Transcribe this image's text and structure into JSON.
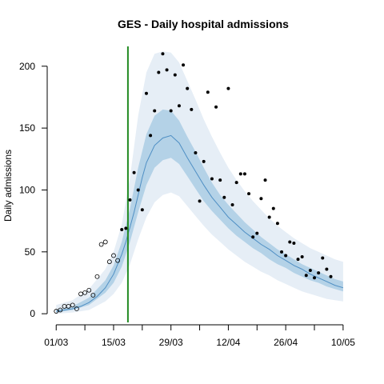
{
  "chart_data": {
    "type": "line",
    "title": "GES - Daily hospital admissions",
    "ylabel": "Daily admissions",
    "xlabel": "",
    "x_ticks": [
      {
        "day": 0,
        "label": "01/03"
      },
      {
        "day": 14,
        "label": "15/03"
      },
      {
        "day": 28,
        "label": "29/03"
      },
      {
        "day": 42,
        "label": "12/04"
      },
      {
        "day": 56,
        "label": "26/04"
      },
      {
        "day": 70,
        "label": "10/05"
      }
    ],
    "x_minor_ticks": [
      7,
      21,
      35,
      49,
      63
    ],
    "y_ticks": [
      0,
      50,
      100,
      150,
      200
    ],
    "xlim": [
      -2,
      71
    ],
    "ylim": [
      -7,
      216
    ],
    "vline": {
      "day": 17.5,
      "color": "#228b22"
    },
    "colors": {
      "outer_band": "#e6eef6",
      "inner_band": "#b4d2e7",
      "median_line": "#4f8fc4",
      "points": "#000000"
    },
    "series": [
      {
        "role": "median",
        "days": [
          0,
          2,
          4,
          6,
          8,
          10,
          12,
          14,
          16,
          17,
          18,
          19,
          20,
          21,
          22,
          24,
          26,
          28,
          30,
          32,
          34,
          36,
          38,
          40,
          42,
          44,
          46,
          48,
          50,
          52,
          54,
          56,
          58,
          60,
          62,
          64,
          66,
          68,
          70
        ],
        "values": [
          2,
          3,
          4,
          6,
          9,
          14,
          21,
          32,
          48,
          58,
          70,
          82,
          96,
          110,
          122,
          136,
          142,
          144,
          138,
          126,
          115,
          104,
          94,
          86,
          78,
          72,
          66,
          61,
          56,
          52,
          47,
          43,
          39,
          36,
          32,
          29,
          26,
          23,
          21
        ]
      },
      {
        "role": "inner-band-upper",
        "days": [
          0,
          4,
          8,
          12,
          14,
          16,
          18,
          20,
          22,
          24,
          26,
          28,
          30,
          32,
          34,
          36,
          38,
          40,
          42,
          44,
          46,
          48,
          50,
          52,
          54,
          56,
          58,
          60,
          62,
          64,
          66,
          68,
          70
        ],
        "values": [
          3,
          6,
          13,
          27,
          39,
          58,
          85,
          118,
          145,
          160,
          165,
          164,
          156,
          143,
          131,
          118,
          106,
          96,
          88,
          81,
          74,
          68,
          62,
          57,
          52,
          48,
          44,
          40,
          37,
          34,
          31,
          28,
          26
        ]
      },
      {
        "role": "inner-band-lower",
        "days": [
          0,
          4,
          8,
          12,
          14,
          16,
          18,
          20,
          22,
          24,
          26,
          28,
          30,
          32,
          34,
          36,
          38,
          40,
          42,
          44,
          46,
          48,
          50,
          52,
          54,
          56,
          58,
          60,
          62,
          64,
          66,
          68,
          70
        ],
        "values": [
          1,
          3,
          7,
          17,
          25,
          38,
          58,
          82,
          104,
          118,
          124,
          126,
          121,
          111,
          101,
          91,
          83,
          76,
          69,
          63,
          58,
          53,
          49,
          44,
          40,
          37,
          33,
          30,
          27,
          25,
          22,
          20,
          18
        ]
      },
      {
        "role": "outer-band-upper",
        "days": [
          0,
          4,
          8,
          12,
          14,
          16,
          18,
          20,
          22,
          24,
          26,
          28,
          30,
          32,
          34,
          36,
          38,
          40,
          42,
          44,
          46,
          48,
          50,
          52,
          54,
          56,
          58,
          60,
          62,
          64,
          66,
          68,
          70
        ],
        "values": [
          7,
          11,
          20,
          36,
          50,
          72,
          110,
          160,
          195,
          210,
          212,
          211,
          203,
          188,
          173,
          157,
          143,
          130,
          118,
          108,
          99,
          91,
          84,
          77,
          71,
          66,
          61,
          57,
          53,
          50,
          47,
          44,
          42
        ]
      },
      {
        "role": "outer-band-lower",
        "days": [
          0,
          4,
          8,
          12,
          14,
          16,
          18,
          20,
          22,
          24,
          26,
          28,
          30,
          32,
          34,
          36,
          38,
          40,
          42,
          44,
          46,
          48,
          50,
          52,
          54,
          56,
          58,
          60,
          62,
          64,
          66,
          68,
          70
        ],
        "values": [
          0,
          1,
          3,
          10,
          16,
          25,
          40,
          60,
          78,
          90,
          96,
          98,
          95,
          87,
          79,
          71,
          64,
          58,
          52,
          47,
          42,
          38,
          34,
          31,
          27,
          24,
          21,
          18,
          16,
          14,
          12,
          11,
          10
        ]
      }
    ],
    "observed_fitted": [
      {
        "day": 0,
        "value": 2
      },
      {
        "day": 1,
        "value": 3
      },
      {
        "day": 2,
        "value": 6
      },
      {
        "day": 3,
        "value": 6
      },
      {
        "day": 4,
        "value": 7
      },
      {
        "day": 5,
        "value": 4
      },
      {
        "day": 6,
        "value": 16
      },
      {
        "day": 7,
        "value": 17
      },
      {
        "day": 8,
        "value": 19
      },
      {
        "day": 9,
        "value": 15
      },
      {
        "day": 10,
        "value": 30
      },
      {
        "day": 11,
        "value": 56
      },
      {
        "day": 12,
        "value": 58
      },
      {
        "day": 13,
        "value": 42
      },
      {
        "day": 14,
        "value": 47
      },
      {
        "day": 15,
        "value": 43
      }
    ],
    "observed_predicted": [
      {
        "day": 16,
        "value": 68
      },
      {
        "day": 17,
        "value": 69
      },
      {
        "day": 18,
        "value": 92
      },
      {
        "day": 19,
        "value": 114
      },
      {
        "day": 20,
        "value": 100
      },
      {
        "day": 21,
        "value": 84
      },
      {
        "day": 22,
        "value": 178
      },
      {
        "day": 23,
        "value": 144
      },
      {
        "day": 24,
        "value": 164
      },
      {
        "day": 25,
        "value": 195
      },
      {
        "day": 26,
        "value": 210
      },
      {
        "day": 27,
        "value": 197
      },
      {
        "day": 28,
        "value": 164
      },
      {
        "day": 29,
        "value": 193
      },
      {
        "day": 30,
        "value": 168
      },
      {
        "day": 31,
        "value": 201
      },
      {
        "day": 32,
        "value": 182
      },
      {
        "day": 33,
        "value": 165
      },
      {
        "day": 34,
        "value": 130
      },
      {
        "day": 35,
        "value": 91
      },
      {
        "day": 36,
        "value": 123
      },
      {
        "day": 37,
        "value": 179
      },
      {
        "day": 38,
        "value": 109
      },
      {
        "day": 39,
        "value": 167
      },
      {
        "day": 40,
        "value": 108
      },
      {
        "day": 41,
        "value": 94
      },
      {
        "day": 42,
        "value": 182
      },
      {
        "day": 43,
        "value": 88
      },
      {
        "day": 44,
        "value": 106
      },
      {
        "day": 45,
        "value": 113
      },
      {
        "day": 46,
        "value": 113
      },
      {
        "day": 47,
        "value": 97
      },
      {
        "day": 48,
        "value": 62
      },
      {
        "day": 49,
        "value": 65
      },
      {
        "day": 50,
        "value": 93
      },
      {
        "day": 51,
        "value": 108
      },
      {
        "day": 52,
        "value": 78
      },
      {
        "day": 53,
        "value": 85
      },
      {
        "day": 54,
        "value": 73
      },
      {
        "day": 55,
        "value": 50
      },
      {
        "day": 56,
        "value": 47
      },
      {
        "day": 57,
        "value": 58
      },
      {
        "day": 58,
        "value": 57
      },
      {
        "day": 59,
        "value": 44
      },
      {
        "day": 60,
        "value": 46
      },
      {
        "day": 61,
        "value": 31
      },
      {
        "day": 62,
        "value": 35
      },
      {
        "day": 63,
        "value": 29
      },
      {
        "day": 64,
        "value": 33
      },
      {
        "day": 65,
        "value": 45
      },
      {
        "day": 66,
        "value": 36
      },
      {
        "day": 67,
        "value": 30
      }
    ]
  }
}
